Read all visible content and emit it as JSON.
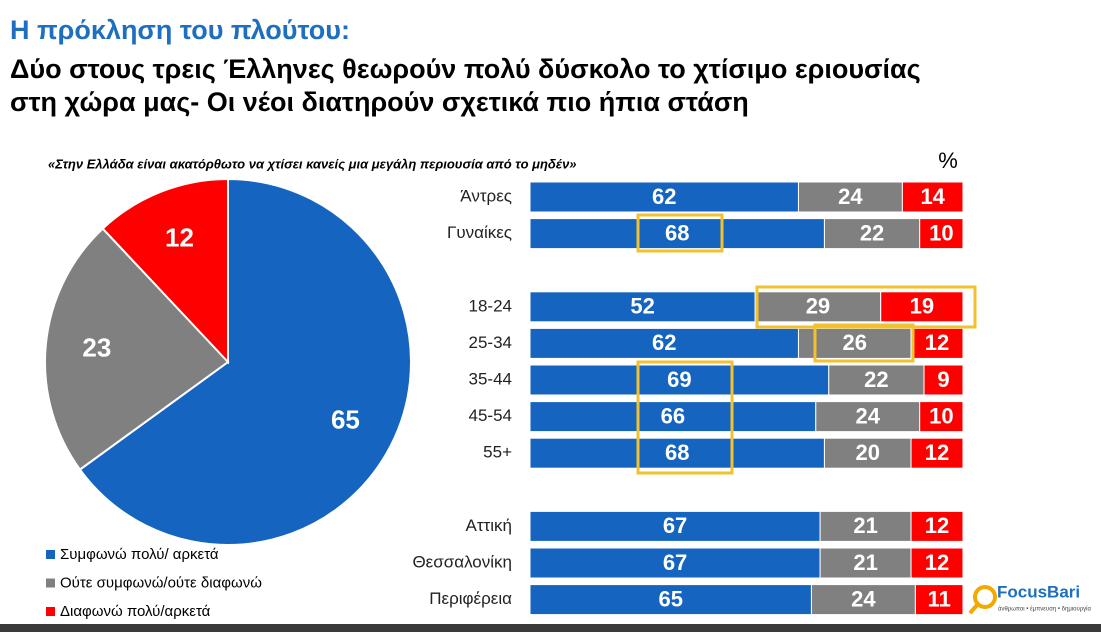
{
  "header": {
    "title": "Η πρόκληση του πλούτου:",
    "subtitle_lines": [
      "Δύο στους τρεις Έλληνες θεωρούν πολύ δύσκολο το χτίσιμο εριουσίας",
      "στη χώρα μας- Οι νέοι διατηρούν σχετικά πιο ήπια στάση"
    ]
  },
  "chart_data": [
    {
      "type": "pie",
      "subtitle": "«Στην Ελλάδα είναι ακατόρθωτο να χτίσει κανείς μια μεγάλη περιουσία από το μηδέν»",
      "categories": [
        "Συμφωνώ πολύ/ αρκετά",
        "Ούτε συμφωνώ/ούτε διαφωνώ",
        "Διαφωνώ πολύ/αρκετά"
      ],
      "values": [
        65,
        23,
        12
      ],
      "colors": [
        "#1565c0",
        "#808080",
        "#ff0000"
      ]
    },
    {
      "type": "stacked-bar-horizontal",
      "unit": "%",
      "xlim": [
        0,
        100
      ],
      "categories": [
        "Άντρες",
        "Γυναίκες",
        null,
        "18-24",
        "25-34",
        "35-44",
        "45-54",
        "55+",
        null,
        "Αττική",
        "Θεσσαλονίκη",
        "Περιφέρεια"
      ],
      "series": [
        {
          "color": "#1565c0",
          "values": [
            62,
            68,
            null,
            52,
            62,
            69,
            66,
            68,
            null,
            67,
            67,
            65
          ]
        },
        {
          "color": "#808080",
          "values": [
            24,
            22,
            null,
            29,
            26,
            22,
            24,
            20,
            null,
            21,
            21,
            24
          ]
        },
        {
          "color": "#ff0000",
          "values": [
            14,
            10,
            null,
            19,
            12,
            9,
            10,
            12,
            null,
            12,
            12,
            11
          ]
        }
      ]
    }
  ],
  "logo": {
    "name": "FocusBari",
    "tagline": "άνθρωποι • έμπνευση • δημιουργία"
  }
}
